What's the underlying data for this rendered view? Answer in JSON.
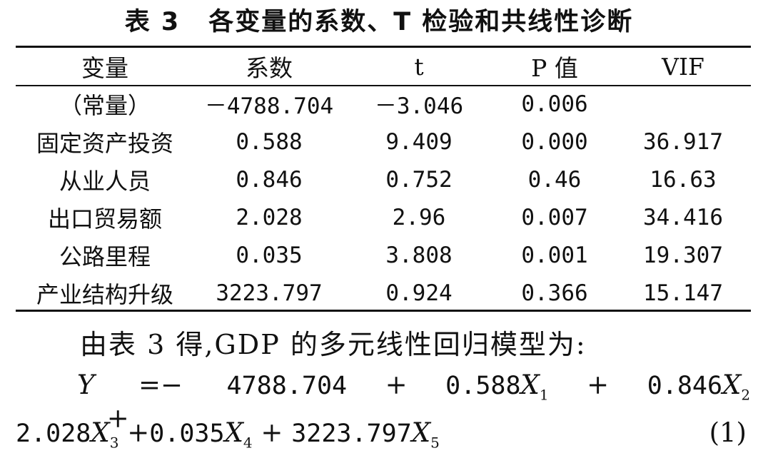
{
  "title": {
    "number": "表 3",
    "text": "各变量的系数、T 检验和共线性诊断"
  },
  "table": {
    "headers": [
      "变量",
      "系数",
      "t",
      "P 值",
      "VIF"
    ],
    "rows": [
      [
        "（常量）",
        "－4788.704",
        "－3.046",
        "0.006",
        ""
      ],
      [
        "固定资产投资",
        "0.588",
        "9.409",
        "0.000",
        "36.917"
      ],
      [
        "从业人员",
        "0.846",
        "0.752",
        "0.46",
        "16.63"
      ],
      [
        "出口贸易额",
        "2.028",
        "2.96",
        "0.007",
        "34.416"
      ],
      [
        "公路里程",
        "0.035",
        "3.808",
        "0.001",
        "19.307"
      ],
      [
        "产业结构升级",
        "3223.797",
        "0.924",
        "0.366",
        "15.147"
      ]
    ]
  },
  "text": {
    "intro": "由表 3 得,GDP 的多元线性回归模型为:",
    "eq_y": "Y",
    "eq_eq": "=−",
    "eq_c0": "4788.704",
    "eq_plus": "+",
    "eq_c1": "0.588",
    "eq_c2": "0.846",
    "eq_c3": "2.028",
    "eq_c4": "0.035",
    "eq_c5": "3223.797",
    "eq_x": "X",
    "sub1": "1",
    "sub2": "2",
    "sub3": "3",
    "sub4": "4",
    "sub5": "5",
    "eq_number": "(1)"
  }
}
